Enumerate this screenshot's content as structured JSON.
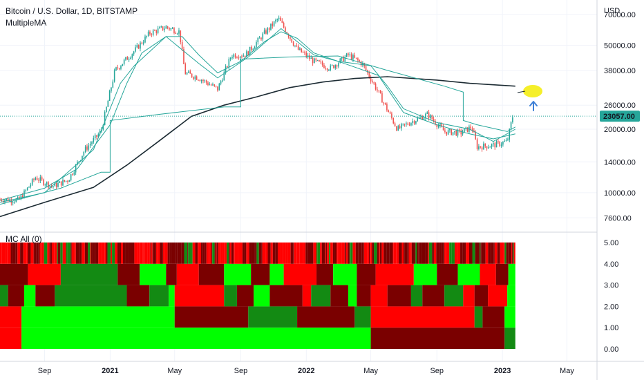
{
  "header": {
    "symbol": "Bitcoin / U.S. Dollar, 1D, BITSTAMP",
    "indicator": "MultipleMA",
    "currency": "USD"
  },
  "price_label": {
    "value": "23057.00",
    "color": "#26a69a",
    "price": 23057
  },
  "sub_panel": {
    "title": "MC All (0)"
  },
  "colors": {
    "candle_up": "#26a69a",
    "candle_down": "#ef5350",
    "ma_long": "#1c2b33",
    "ma_short": "#26a69a",
    "heat_bright_green": "#00ff00",
    "heat_dark_green": "#138a13",
    "heat_bright_red": "#ff0000",
    "heat_dark_red": "#7a0000",
    "annotation_dot": "#f5ef2a",
    "annotation_arrow": "#3d7fd6"
  },
  "chart_data": [
    {
      "type": "line",
      "title": "Bitcoin / U.S. Dollar, 1D, BITSTAMP",
      "yscale": "log",
      "y_ticks": [
        "70000.00",
        "50000.00",
        "38000.00",
        "26000.00",
        "20000.00",
        "14000.00",
        "10000.00",
        "7600.00"
      ],
      "y_tick_values": [
        70000,
        50000,
        38000,
        26000,
        20000,
        14000,
        10000,
        7600
      ],
      "x_ticks": [
        "Sep",
        "2021",
        "May",
        "Sep",
        "2022",
        "May",
        "Sep",
        "2023",
        "May"
      ],
      "x_tick_values": [
        "2020-09-01",
        "2021-01-01",
        "2021-05-01",
        "2021-09-01",
        "2022-01-01",
        "2022-05-01",
        "2022-09-01",
        "2023-01-01",
        "2023-05-01"
      ],
      "x_range": [
        "2020-06-10",
        "2023-06-26"
      ],
      "y_range": [
        6500,
        82000
      ],
      "series": [
        {
          "style": "candlestick",
          "x": [
            "2020-06-15",
            "2020-07-15",
            "2020-08-15",
            "2020-09-15",
            "2020-10-15",
            "2020-11-15",
            "2020-12-15",
            "2021-01-10",
            "2021-02-15",
            "2021-03-15",
            "2021-04-15",
            "2021-05-10",
            "2021-05-20",
            "2021-06-15",
            "2021-07-20",
            "2021-08-15",
            "2021-09-10",
            "2021-10-15",
            "2021-11-10",
            "2021-12-15",
            "2022-01-15",
            "2022-02-15",
            "2022-03-20",
            "2022-04-15",
            "2022-05-15",
            "2022-06-15",
            "2022-06-20",
            "2022-07-20",
            "2022-08-15",
            "2022-09-15",
            "2022-10-15",
            "2022-11-05",
            "2022-11-15",
            "2022-12-15",
            "2023-01-10",
            "2023-01-20"
          ],
          "y": [
            9300,
            9200,
            11800,
            10700,
            11500,
            16000,
            19500,
            38000,
            47000,
            57000,
            61000,
            58000,
            37000,
            35000,
            31000,
            45000,
            45000,
            57000,
            67000,
            48000,
            42000,
            39000,
            45000,
            41000,
            30000,
            21000,
            20000,
            22000,
            23500,
            19500,
            19200,
            20500,
            16500,
            16800,
            17500,
            23000
          ]
        },
        {
          "style": "line",
          "role": "ma-long",
          "x": [
            "2020-06-10",
            "2020-09-01",
            "2020-12-01",
            "2021-02-01",
            "2021-04-01",
            "2021-06-01",
            "2021-08-01",
            "2021-10-01",
            "2021-12-01",
            "2022-02-01",
            "2022-04-01",
            "2022-06-01",
            "2022-09-01",
            "2022-11-01",
            "2023-01-25"
          ],
          "y": [
            7700,
            9000,
            10600,
            13500,
            17500,
            23000,
            26000,
            28500,
            31500,
            33500,
            34800,
            35500,
            34200,
            33000,
            32000
          ]
        },
        {
          "style": "line",
          "role": "ma-short-1",
          "x": [
            "2020-06-10",
            "2020-09-01",
            "2020-11-01",
            "2021-01-01",
            "2021-02-01",
            "2021-03-01",
            "2021-04-15",
            "2021-05-15",
            "2021-06-15",
            "2021-07-20",
            "2021-09-01",
            "2021-10-15",
            "2021-11-15",
            "2021-12-15",
            "2022-01-15",
            "2022-03-01",
            "2022-05-01",
            "2022-06-01",
            "2022-07-01",
            "2022-09-01",
            "2022-11-01",
            "2022-12-15",
            "2023-01-25"
          ],
          "y": [
            9200,
            10500,
            13000,
            21000,
            33000,
            46000,
            55000,
            55000,
            45000,
            37000,
            42000,
            52000,
            58000,
            54000,
            46000,
            42000,
            40000,
            32000,
            25000,
            21500,
            20000,
            17500,
            20000
          ]
        },
        {
          "style": "line",
          "role": "ma-short-2",
          "x": [
            "2020-06-10",
            "2020-09-01",
            "2020-12-01",
            "2021-01-20",
            "2021-02-15",
            "2021-04-15",
            "2021-06-15",
            "2021-07-20",
            "2021-09-15",
            "2021-11-15",
            "2022-01-15",
            "2022-03-01",
            "2022-05-15",
            "2022-07-01",
            "2022-09-01",
            "2022-11-01",
            "2022-12-15",
            "2023-01-25"
          ],
          "y": [
            9000,
            10000,
            16000,
            33000,
            40000,
            55000,
            41000,
            35000,
            44000,
            60000,
            45000,
            42000,
            36000,
            24000,
            21000,
            19000,
            18000,
            19000
          ]
        },
        {
          "style": "line",
          "role": "ma-mid",
          "x": [
            "2020-06-10",
            "2020-10-01",
            "2020-12-15",
            "2021-01-01",
            "2021-01-01",
            "2021-04-01",
            "2021-08-01",
            "2021-09-01",
            "2021-09-01",
            "2021-12-01",
            "2022-03-01",
            "2022-06-01",
            "2022-09-15",
            "2022-10-20",
            "2022-10-20",
            "2022-11-15",
            "2023-01-10",
            "2023-01-25"
          ],
          "y": [
            8800,
            10500,
            12500,
            12500,
            22000,
            23500,
            25500,
            25500,
            43000,
            44000,
            44500,
            38000,
            32000,
            30000,
            22000,
            21000,
            19500,
            20500
          ]
        }
      ],
      "annotations": [
        "ellipse-yellow",
        "arrow-up-blue"
      ]
    },
    {
      "type": "heatmap",
      "title": "MC All (0)",
      "y_ticks": [
        "5.00",
        "4.00",
        "3.00",
        "2.00",
        "1.00",
        "0.00"
      ],
      "y_tick_values": [
        5,
        4,
        3,
        2,
        1,
        0
      ],
      "rows": [
        {
          "band": "0-1",
          "segments": [
            {
              "start": "2020-06-10",
              "end": "2020-07-20",
              "color": "bright_red"
            },
            {
              "start": "2020-07-20",
              "end": "2022-05-01",
              "color": "bright_green"
            },
            {
              "start": "2022-05-01",
              "end": "2023-01-05",
              "color": "dark_red"
            },
            {
              "start": "2023-01-05",
              "end": "2023-01-25",
              "color": "dark_green"
            }
          ]
        },
        {
          "band": "1-2",
          "segments": [
            {
              "start": "2020-06-10",
              "end": "2020-07-20",
              "color": "bright_red"
            },
            {
              "start": "2020-07-20",
              "end": "2021-05-01",
              "color": "bright_green"
            },
            {
              "start": "2021-05-01",
              "end": "2021-09-15",
              "color": "dark_red"
            },
            {
              "start": "2021-09-15",
              "end": "2021-12-15",
              "color": "dark_green"
            },
            {
              "start": "2021-12-15",
              "end": "2022-04-01",
              "color": "dark_red"
            },
            {
              "start": "2022-04-01",
              "end": "2022-05-01",
              "color": "dark_green"
            },
            {
              "start": "2022-05-01",
              "end": "2022-11-10",
              "color": "bright_red"
            },
            {
              "start": "2022-11-10",
              "end": "2022-11-25",
              "color": "dark_green"
            },
            {
              "start": "2022-11-25",
              "end": "2023-01-05",
              "color": "dark_red"
            },
            {
              "start": "2023-01-05",
              "end": "2023-01-25",
              "color": "bright_green"
            }
          ]
        },
        {
          "band": "2-3",
          "segments": [
            {
              "start": "2020-06-10",
              "end": "2020-06-25",
              "color": "dark_green"
            },
            {
              "start": "2020-06-25",
              "end": "2020-07-25",
              "color": "dark_red"
            },
            {
              "start": "2020-07-25",
              "end": "2020-08-15",
              "color": "bright_green"
            },
            {
              "start": "2020-08-15",
              "end": "2020-09-20",
              "color": "dark_red"
            },
            {
              "start": "2020-09-20",
              "end": "2021-02-01",
              "color": "dark_green"
            },
            {
              "start": "2021-02-01",
              "end": "2021-03-15",
              "color": "dark_red"
            },
            {
              "start": "2021-03-15",
              "end": "2021-04-20",
              "color": "dark_green"
            },
            {
              "start": "2021-04-20",
              "end": "2021-05-01",
              "color": "bright_green"
            },
            {
              "start": "2021-05-01",
              "end": "2021-08-01",
              "color": "bright_red"
            },
            {
              "start": "2021-08-01",
              "end": "2021-08-25",
              "color": "dark_green"
            },
            {
              "start": "2021-08-25",
              "end": "2021-09-25",
              "color": "dark_red"
            },
            {
              "start": "2021-09-25",
              "end": "2021-10-25",
              "color": "bright_green"
            },
            {
              "start": "2021-10-25",
              "end": "2021-12-25",
              "color": "dark_red"
            },
            {
              "start": "2021-12-25",
              "end": "2022-01-10",
              "color": "bright_red"
            },
            {
              "start": "2022-01-10",
              "end": "2022-02-15",
              "color": "dark_green"
            },
            {
              "start": "2022-02-15",
              "end": "2022-03-20",
              "color": "dark_red"
            },
            {
              "start": "2022-03-20",
              "end": "2022-04-05",
              "color": "bright_green"
            },
            {
              "start": "2022-04-05",
              "end": "2022-05-01",
              "color": "dark_red"
            },
            {
              "start": "2022-05-01",
              "end": "2022-06-01",
              "color": "bright_red"
            },
            {
              "start": "2022-06-01",
              "end": "2022-07-15",
              "color": "dark_red"
            },
            {
              "start": "2022-07-15",
              "end": "2022-08-05",
              "color": "dark_green"
            },
            {
              "start": "2022-08-05",
              "end": "2022-09-15",
              "color": "dark_red"
            },
            {
              "start": "2022-09-15",
              "end": "2022-10-20",
              "color": "dark_green"
            },
            {
              "start": "2022-10-20",
              "end": "2022-11-10",
              "color": "bright_red"
            },
            {
              "start": "2022-11-10",
              "end": "2022-12-05",
              "color": "dark_red"
            },
            {
              "start": "2022-12-05",
              "end": "2023-01-10",
              "color": "bright_red"
            },
            {
              "start": "2023-01-10",
              "end": "2023-01-25",
              "color": "bright_green"
            }
          ]
        },
        {
          "band": "3-4",
          "segments": [
            {
              "start": "2020-06-10",
              "end": "2020-08-01",
              "color": "dark_red"
            },
            {
              "start": "2020-08-01",
              "end": "2020-10-01",
              "color": "bright_red"
            },
            {
              "start": "2020-10-01",
              "end": "2021-01-15",
              "color": "dark_green"
            },
            {
              "start": "2021-01-15",
              "end": "2021-02-25",
              "color": "dark_red"
            },
            {
              "start": "2021-02-25",
              "end": "2021-04-15",
              "color": "bright_green"
            },
            {
              "start": "2021-04-15",
              "end": "2021-05-05",
              "color": "dark_red"
            },
            {
              "start": "2021-05-05",
              "end": "2021-06-15",
              "color": "bright_red"
            },
            {
              "start": "2021-06-15",
              "end": "2021-08-01",
              "color": "dark_red"
            },
            {
              "start": "2021-08-01",
              "end": "2021-09-20",
              "color": "bright_green"
            },
            {
              "start": "2021-09-20",
              "end": "2021-10-25",
              "color": "dark_red"
            },
            {
              "start": "2021-10-25",
              "end": "2021-11-20",
              "color": "bright_green"
            },
            {
              "start": "2021-11-20",
              "end": "2022-01-20",
              "color": "bright_red"
            },
            {
              "start": "2022-01-20",
              "end": "2022-02-20",
              "color": "dark_red"
            },
            {
              "start": "2022-02-20",
              "end": "2022-04-05",
              "color": "bright_green"
            },
            {
              "start": "2022-04-05",
              "end": "2022-05-10",
              "color": "dark_red"
            },
            {
              "start": "2022-05-10",
              "end": "2022-07-20",
              "color": "bright_red"
            },
            {
              "start": "2022-07-20",
              "end": "2022-09-01",
              "color": "bright_green"
            },
            {
              "start": "2022-09-01",
              "end": "2022-10-10",
              "color": "dark_red"
            },
            {
              "start": "2022-10-10",
              "end": "2022-11-20",
              "color": "bright_green"
            },
            {
              "start": "2022-11-20",
              "end": "2022-12-20",
              "color": "bright_red"
            },
            {
              "start": "2022-12-20",
              "end": "2023-01-12",
              "color": "dark_red"
            },
            {
              "start": "2023-01-12",
              "end": "2023-01-25",
              "color": "bright_green"
            }
          ]
        },
        {
          "band": "4-5",
          "segments": [
            {
              "start": "2020-06-10",
              "end": "2023-01-25",
              "color": "mixed_red_dark_red"
            }
          ]
        }
      ]
    }
  ]
}
